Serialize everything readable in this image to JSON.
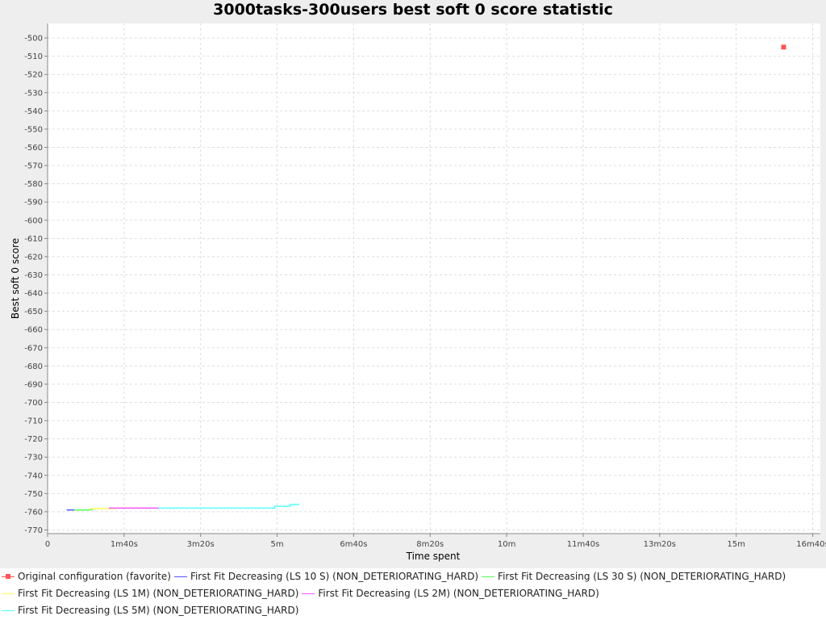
{
  "chart_data": {
    "type": "line",
    "title": "3000tasks-300users best soft 0 score statistic",
    "xlabel": "Time spent",
    "ylabel": "Best soft 0 score",
    "xlim": [
      0,
      1010
    ],
    "ylim": [
      -772,
      -492
    ],
    "x_ticks": [
      {
        "value": 0,
        "label": "0"
      },
      {
        "value": 100,
        "label": "1m40s"
      },
      {
        "value": 200,
        "label": "3m20s"
      },
      {
        "value": 300,
        "label": "5m"
      },
      {
        "value": 400,
        "label": "6m40s"
      },
      {
        "value": 500,
        "label": "8m20s"
      },
      {
        "value": 600,
        "label": "10m"
      },
      {
        "value": 700,
        "label": "11m40s"
      },
      {
        "value": 800,
        "label": "13m20s"
      },
      {
        "value": 900,
        "label": "15m"
      },
      {
        "value": 1000,
        "label": "16m40s"
      }
    ],
    "y_ticks": [
      -500,
      -510,
      -520,
      -530,
      -540,
      -550,
      -560,
      -570,
      -580,
      -590,
      -600,
      -610,
      -620,
      -630,
      -640,
      -650,
      -660,
      -670,
      -680,
      -690,
      -700,
      -710,
      -720,
      -730,
      -740,
      -750,
      -760,
      -770
    ],
    "grid": true,
    "legend_position": "bottom",
    "series": [
      {
        "name": "Original configuration (favorite)",
        "color": "#ff5555",
        "marker": "square",
        "points": [
          [
            962,
            -505
          ]
        ]
      },
      {
        "name": "First Fit Decreasing (LS 10 S) (NON_DETERIORATING_HARD)",
        "color": "#5555ff",
        "marker": "none",
        "points": [
          [
            25,
            -759
          ],
          [
            35,
            -759
          ]
        ]
      },
      {
        "name": "First Fit Decreasing (LS 30 S) (NON_DETERIORATING_HARD)",
        "color": "#55ff55",
        "marker": "none",
        "points": [
          [
            35,
            -759
          ],
          [
            55,
            -759
          ],
          [
            60,
            -758.5
          ]
        ]
      },
      {
        "name": "First Fit Decreasing (LS 1M) (NON_DETERIORATING_HARD)",
        "color": "#ffff55",
        "marker": "none",
        "points": [
          [
            55,
            -758.3
          ],
          [
            90,
            -758.2
          ]
        ]
      },
      {
        "name": "First Fit Decreasing (LS 2M) (NON_DETERIORATING_HARD)",
        "color": "#ff55ff",
        "marker": "none",
        "points": [
          [
            80,
            -758
          ],
          [
            145,
            -758
          ]
        ]
      },
      {
        "name": "First Fit Decreasing (LS 5M) (NON_DETERIORATING_HARD)",
        "color": "#55ffff",
        "marker": "none",
        "points": [
          [
            145,
            -758
          ],
          [
            200,
            -758
          ],
          [
            250,
            -758
          ],
          [
            297,
            -758
          ],
          [
            297,
            -757
          ],
          [
            317,
            -757
          ],
          [
            317,
            -756
          ],
          [
            328,
            -756
          ],
          [
            328,
            -755.5
          ]
        ]
      }
    ]
  }
}
